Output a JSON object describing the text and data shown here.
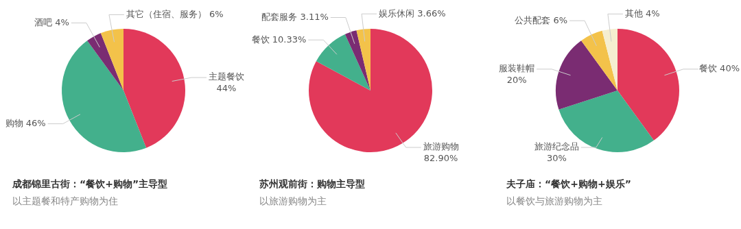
{
  "chart_data": [
    {
      "type": "pie",
      "title": "成都锦里古街：“餐饮+购物”主导型",
      "subtitle": "以主题餐和特产购物为住",
      "categories": [
        "主题餐饮",
        "购物",
        "酒吧",
        "其它（住宿、服务）"
      ],
      "values": [
        44,
        46,
        4,
        6
      ],
      "colors": [
        "#e2395a",
        "#43b08c",
        "#7a2c72",
        "#f3c24a"
      ],
      "value_labels": [
        "44%",
        "46%",
        "4%",
        "6%"
      ]
    },
    {
      "type": "pie",
      "title": "苏州观前街：购物主导型",
      "subtitle": "以旅游购物为主",
      "categories": [
        "旅游购物",
        "餐饮",
        "配套服务",
        "娱乐休闲"
      ],
      "values": [
        82.9,
        10.33,
        3.11,
        3.66
      ],
      "colors": [
        "#e2395a",
        "#43b08c",
        "#7a2c72",
        "#f3c24a"
      ],
      "value_labels": [
        "82.90%",
        "10.33%",
        "3.11%",
        "3.66%"
      ]
    },
    {
      "type": "pie",
      "title": "夫子庙：“餐饮+购物+娱乐”",
      "subtitle": "以餐饮与旅游购物为主",
      "categories": [
        "餐饮",
        "旅游纪念品",
        "服装鞋帽",
        "公共配套",
        "其他"
      ],
      "values": [
        40,
        30,
        20,
        6,
        4
      ],
      "colors": [
        "#e2395a",
        "#43b08c",
        "#7a2c72",
        "#f3c24a",
        "#f5eed0"
      ],
      "value_labels": [
        "40%",
        "30%",
        "20%",
        "6%",
        "4%"
      ]
    }
  ]
}
